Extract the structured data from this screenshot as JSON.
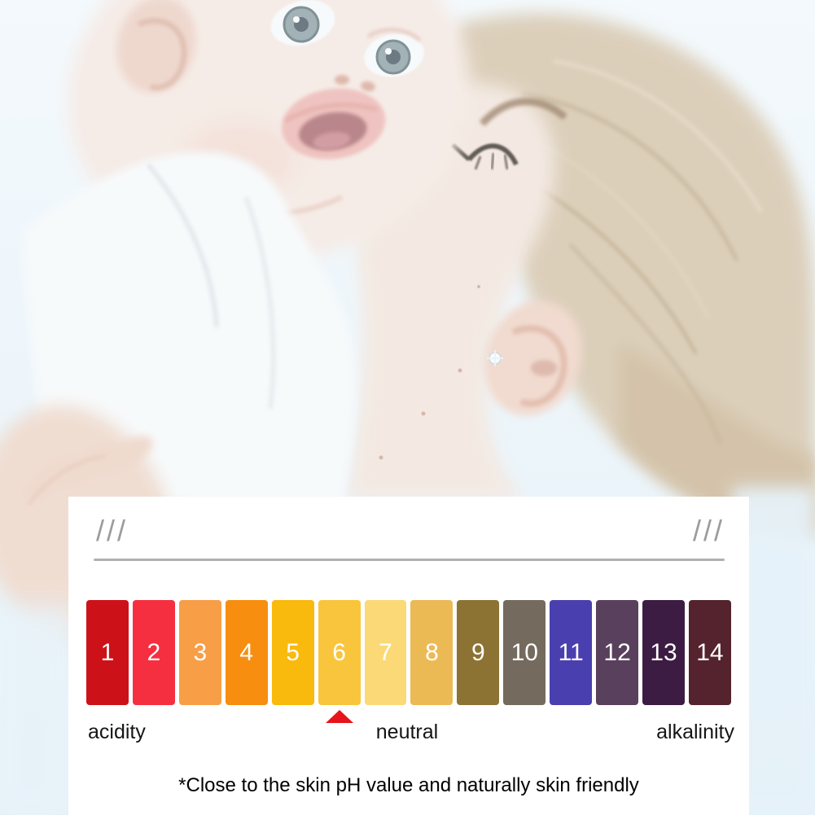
{
  "photo": {
    "subject": "mother kissing a baby's cheek, washed-out pale blue tones"
  },
  "colors": {
    "page_background": "#e9f4fa",
    "panel_background": "#ffffff",
    "divider": "#b0b0b0",
    "decor_slashes": "#9c9c9c",
    "marker": "#e8141b",
    "label_text": "#151515",
    "footnote_text": "#000000",
    "swatch_number_text": "#ffffff"
  },
  "panel": {
    "decor_left": "///",
    "decor_right": "///",
    "ph_scale": {
      "swatches": [
        {
          "value": "1",
          "color": "#cd1118"
        },
        {
          "value": "2",
          "color": "#f62f40"
        },
        {
          "value": "3",
          "color": "#f79e47"
        },
        {
          "value": "4",
          "color": "#f78e10"
        },
        {
          "value": "5",
          "color": "#fab90d"
        },
        {
          "value": "6",
          "color": "#f9c53c"
        },
        {
          "value": "7",
          "color": "#fbd977"
        },
        {
          "value": "8",
          "color": "#ecba55"
        },
        {
          "value": "9",
          "color": "#8c7334"
        },
        {
          "value": "10",
          "color": "#746a5e"
        },
        {
          "value": "11",
          "color": "#4a3fae"
        },
        {
          "value": "12",
          "color": "#59405c"
        },
        {
          "value": "13",
          "color": "#3d1c44"
        },
        {
          "value": "14",
          "color": "#54232e"
        }
      ],
      "marker": {
        "points_at": "6",
        "color": "#e8141b"
      },
      "labels": {
        "left": "acidity",
        "center": "neutral",
        "right": "alkalinity"
      }
    },
    "footnote": "*Close to the skin pH value and naturally skin friendly"
  }
}
